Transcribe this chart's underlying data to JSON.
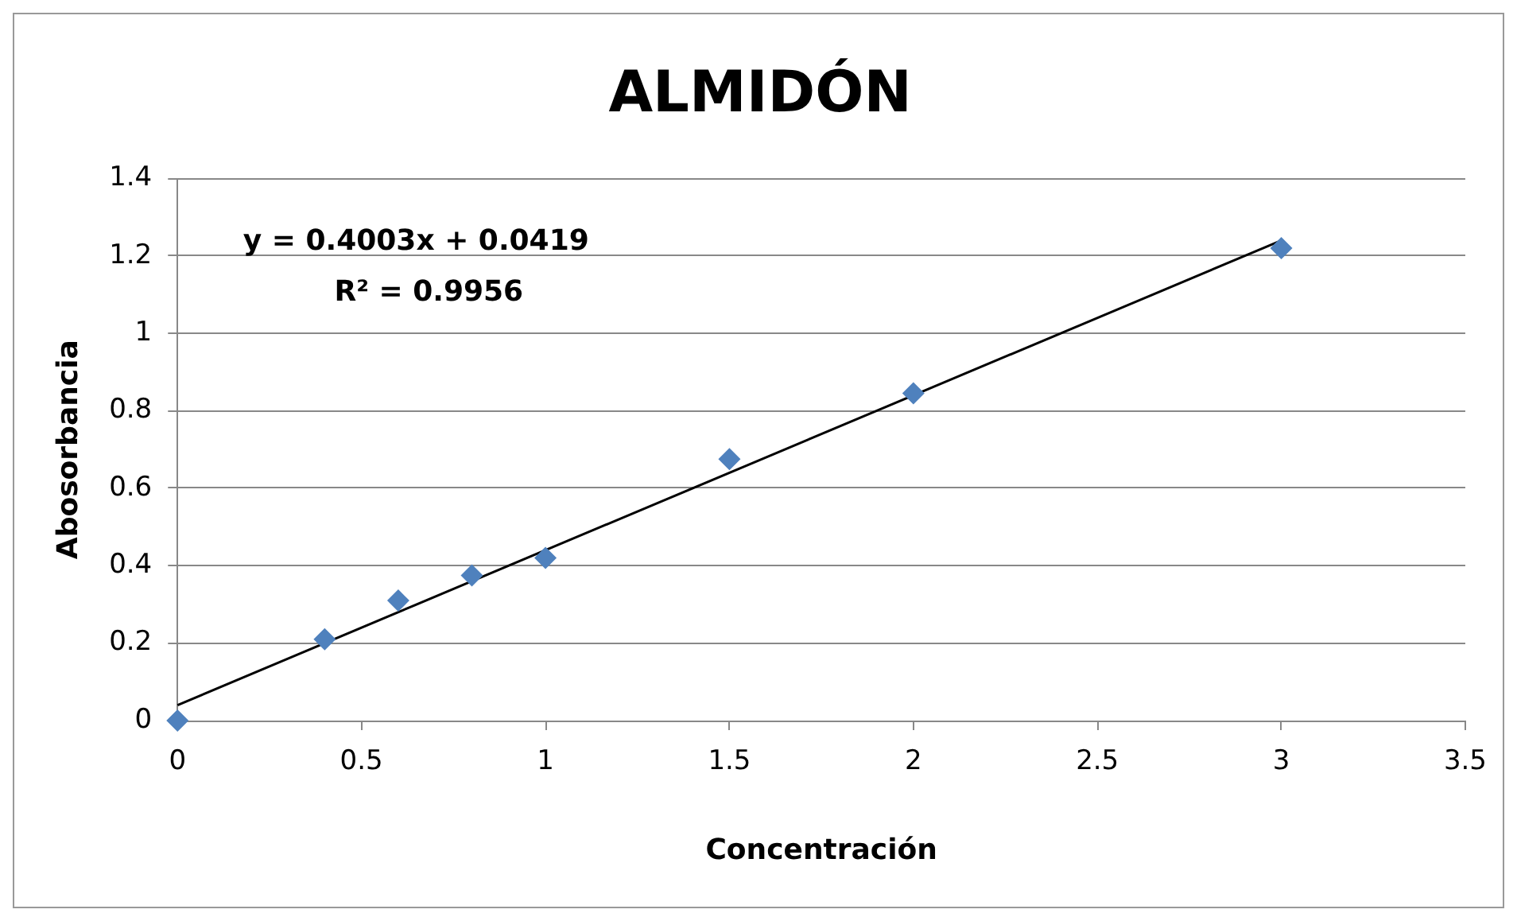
{
  "chart_data": {
    "type": "scatter",
    "title": "ALMIDÓN",
    "xlabel": "Concentración",
    "ylabel": "Abosorbancia",
    "xlim": [
      0,
      3.5
    ],
    "xticks": [
      0,
      0.5,
      1,
      1.5,
      2,
      2.5,
      3,
      3.5
    ],
    "ylim": [
      0,
      1.4
    ],
    "yticks": [
      0,
      0.2,
      0.4,
      0.6,
      0.8,
      1,
      1.2,
      1.4
    ],
    "grid": "y",
    "legend": false,
    "marker": "diamond",
    "series": [
      {
        "color": "#4f81bd",
        "x": [
          0,
          0.4,
          0.6,
          0.8,
          1,
          1.5,
          2,
          3
        ],
        "values": [
          0,
          0.21,
          0.31,
          0.375,
          0.42,
          0.675,
          0.845,
          1.22
        ]
      },
      {
        "type": "line",
        "color": "#000000",
        "x": [
          0,
          3
        ],
        "values": [
          0.04,
          1.24
        ],
        "marker": "none"
      }
    ],
    "annotations": [
      "y = 0.4003x + 0.0419",
      "R² = 0.9956"
    ]
  }
}
